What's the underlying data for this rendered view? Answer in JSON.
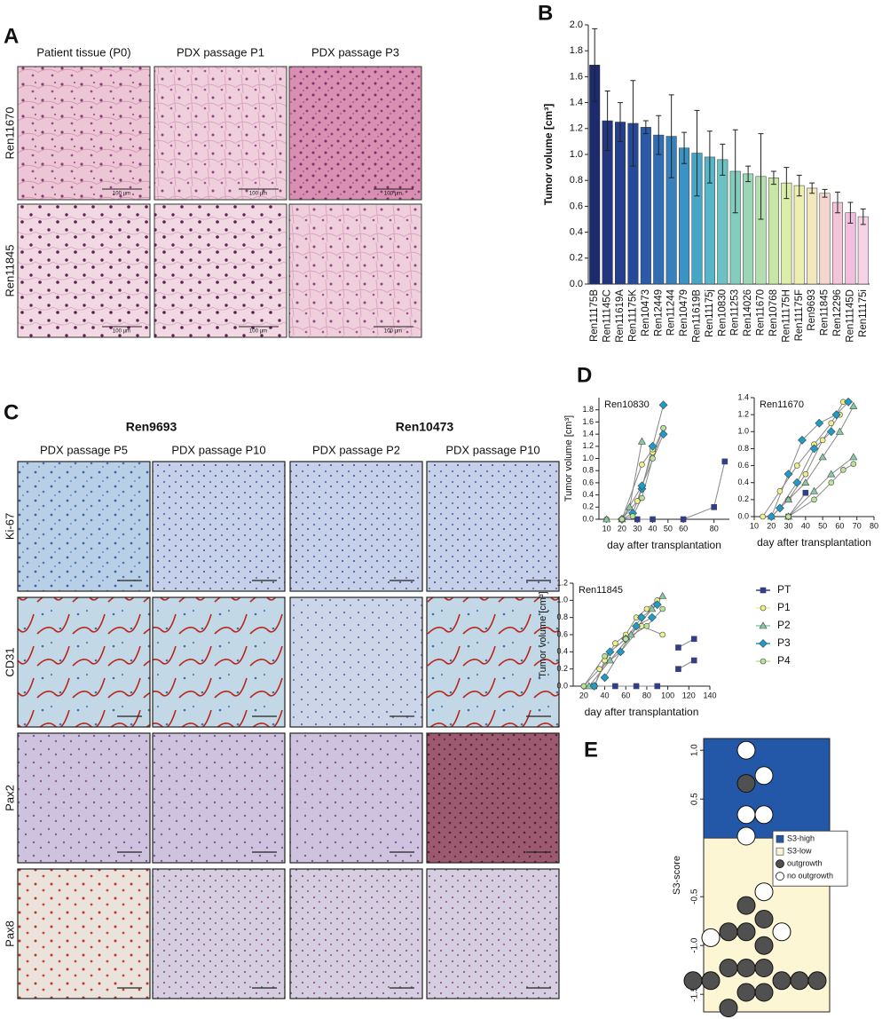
{
  "panel_letters": [
    "A",
    "B",
    "C",
    "D",
    "E"
  ],
  "panels": {
    "a": {
      "columns": [
        "Patient tissue (P0)",
        "PDX passage P1",
        "PDX passage P3"
      ],
      "rows": [
        "Ren11670",
        "Ren11845"
      ],
      "scale_bar": "100 µm"
    },
    "c": {
      "groups": [
        {
          "name": "Ren9693",
          "columns": [
            "PDX passage P5",
            "PDX passage P10"
          ]
        },
        {
          "name": "Ren10473",
          "columns": [
            "PDX passage P2",
            "PDX passage P10"
          ]
        }
      ],
      "rows": [
        "Ki-67",
        "CD31",
        "Pax2",
        "Pax8"
      ]
    }
  },
  "chart_data": [
    {
      "type": "bar",
      "ylabel": "Tumor volume [cm³]",
      "categories": [
        "Ren11175B",
        "Ren11145C",
        "Ren11619A",
        "Ren11175K",
        "Ren10473",
        "Ren12449",
        "Ren11244",
        "Ren10479",
        "Ren11619B",
        "Ren11175j",
        "Ren10830",
        "Ren11253",
        "Ren14026",
        "Ren11670",
        "Ren10768",
        "Ren11175H",
        "Ren11175F",
        "Ren9693",
        "Ren11845",
        "Ren12296",
        "Ren11145D",
        "Ren11175i"
      ],
      "values": [
        1.69,
        1.26,
        1.25,
        1.24,
        1.21,
        1.15,
        1.14,
        1.05,
        1.01,
        0.98,
        0.96,
        0.87,
        0.85,
        0.83,
        0.82,
        0.78,
        0.76,
        0.74,
        0.7,
        0.63,
        0.55,
        0.52
      ],
      "errors": [
        0.28,
        0.23,
        0.15,
        0.33,
        0.05,
        0.15,
        0.32,
        0.12,
        0.33,
        0.2,
        0.12,
        0.32,
        0.06,
        0.33,
        0.05,
        0.12,
        0.08,
        0.04,
        0.03,
        0.08,
        0.08,
        0.06
      ],
      "colors": [
        "#1c2a6e",
        "#22357f",
        "#253f8e",
        "#27499c",
        "#2a5aa8",
        "#2f6db5",
        "#3580bd",
        "#3a93c4",
        "#45a6c8",
        "#56b5c7",
        "#6cc2c3",
        "#84cdbd",
        "#9bd6b6",
        "#b3deae",
        "#c8e6a8",
        "#dbeda6",
        "#ecefb0",
        "#f3e7bd",
        "#f4d7cc",
        "#f2c6d8",
        "#f1bfdd",
        "#f6d3e6"
      ],
      "ylim": [
        0,
        2.0
      ],
      "yticks": [
        {
          "value": 0,
          "label": "0.0"
        },
        0.2,
        0.4,
        0.6,
        0.8,
        {
          "value": 1,
          "label": "1.0"
        },
        1.2,
        1.4,
        1.6,
        1.8,
        {
          "value": 2,
          "label": "2.0"
        }
      ]
    },
    {
      "type": "line",
      "title": "Ren10830",
      "xlabel": "day after transplantation",
      "ylabel": "Tumor volume [cm³]",
      "xlim": [
        5,
        90
      ],
      "xticks": [
        10,
        20,
        30,
        40,
        50,
        60,
        80
      ],
      "ylim": [
        0,
        2.0
      ],
      "yticks": [
        {
          "value": 0,
          "label": "0.0"
        },
        0.2,
        0.4,
        0.6,
        0.8,
        {
          "value": 1,
          "label": "1.0"
        },
        1.2,
        1.4,
        1.6,
        1.8
      ],
      "line_color": "#888888",
      "series": [
        {
          "color": "#2f3e94",
          "marker": "square",
          "x": [
            30,
            40,
            null,
            60,
            80,
            87
          ],
          "values": [
            0,
            0,
            null,
            0,
            0.2,
            0.95
          ]
        },
        {
          "color": "#eef08c",
          "marker": "circle",
          "x": [
            10,
            20,
            30,
            40,
            47,
            null,
            20,
            33,
            40
          ],
          "values": [
            0,
            0,
            0.3,
            1.1,
            1.5,
            null,
            0,
            0.9,
            1.15
          ]
        },
        {
          "color": "#86c9a3",
          "marker": "triangle",
          "x": [
            10,
            20,
            25,
            33
          ],
          "values": [
            0,
            0,
            0.2,
            1.28
          ]
        },
        {
          "color": "#1e9cc8",
          "marker": "diamond",
          "x": [
            20,
            27,
            33,
            40,
            47,
            null,
            20,
            33,
            47
          ],
          "values": [
            0,
            0.1,
            0.5,
            1.2,
            1.88,
            null,
            0,
            0.55,
            1.4
          ]
        },
        {
          "color": "#b9e39a",
          "marker": "circle",
          "x": [
            20,
            27,
            33,
            40,
            47
          ],
          "values": [
            0,
            0.05,
            0.35,
            1.0,
            1.5
          ]
        }
      ]
    },
    {
      "type": "line",
      "title": "Ren11670",
      "xlabel": "day after transplantation",
      "ylabel": "",
      "xlim": [
        10,
        80
      ],
      "xticks": [
        10,
        20,
        30,
        40,
        50,
        60,
        70,
        80
      ],
      "ylim": [
        0,
        1.4
      ],
      "yticks": [
        {
          "value": 0,
          "label": "0.0"
        },
        0.2,
        0.4,
        0.6,
        0.8,
        {
          "value": 1,
          "label": "1.0"
        },
        1.2,
        1.4
      ],
      "line_color": "#888888",
      "series": [
        {
          "color": "#2f3e94",
          "marker": "square",
          "x": [
            30,
            40
          ],
          "values": [
            0,
            0.28
          ]
        },
        {
          "color": "#eef08c",
          "marker": "circle",
          "x": [
            15,
            25,
            35,
            45,
            55,
            62,
            null,
            20,
            30,
            40,
            50,
            60
          ],
          "values": [
            0,
            0.3,
            0.6,
            0.85,
            1.1,
            1.35,
            null,
            0,
            0.2,
            0.5,
            0.9,
            1.2
          ]
        },
        {
          "color": "#86c9a3",
          "marker": "triangle",
          "x": [
            20,
            30,
            40,
            50,
            60,
            68,
            null,
            30,
            45,
            55,
            68
          ],
          "values": [
            0,
            0.2,
            0.4,
            0.7,
            1.0,
            1.3,
            null,
            0,
            0.3,
            0.5,
            0.7
          ]
        },
        {
          "color": "#1e9cc8",
          "marker": "diamond",
          "x": [
            20,
            30,
            38,
            48,
            58,
            65,
            null,
            25,
            35,
            45,
            55
          ],
          "values": [
            0,
            0.5,
            0.9,
            1.1,
            1.2,
            1.35,
            null,
            0.1,
            0.4,
            0.8,
            1.0
          ]
        },
        {
          "color": "#b9e39a",
          "marker": "circle",
          "x": [
            30,
            45,
            55,
            62,
            68
          ],
          "values": [
            0,
            0.2,
            0.4,
            0.55,
            0.62
          ]
        }
      ]
    },
    {
      "type": "line",
      "title": "Ren11845",
      "xlabel": "day after transplantation",
      "ylabel": "Tumor volume [cm³]",
      "xlim": [
        10,
        140
      ],
      "xticks": [
        20,
        40,
        60,
        80,
        100,
        120,
        140
      ],
      "ylim": [
        0,
        1.2
      ],
      "yticks": [
        {
          "value": 0,
          "label": "0.0"
        },
        0.2,
        0.4,
        0.6,
        0.8,
        {
          "value": 1,
          "label": "1.0"
        },
        1.2
      ],
      "line_color": "#888888",
      "legend": "right",
      "series": [
        {
          "name": "PT",
          "color": "#2f3e94",
          "marker": "square",
          "x": [
            30,
            50,
            70,
            90,
            null,
            110,
            125,
            null,
            110,
            125
          ],
          "values": [
            0,
            0,
            0,
            0,
            null,
            0.45,
            0.55,
            null,
            0.2,
            0.3
          ]
        },
        {
          "name": "P1",
          "color": "#eef08c",
          "marker": "circle",
          "x": [
            30,
            40,
            50,
            60,
            70,
            80,
            90,
            null,
            20,
            35,
            55,
            75,
            95
          ],
          "values": [
            0,
            0.3,
            0.5,
            0.6,
            0.8,
            0.9,
            1.0,
            null,
            0,
            0.2,
            0.4,
            0.7,
            0.6
          ]
        },
        {
          "name": "P2",
          "color": "#86c9a3",
          "marker": "triangle",
          "x": [
            25,
            45,
            65,
            85,
            95
          ],
          "values": [
            0,
            0.3,
            0.6,
            0.9,
            1.05
          ]
        },
        {
          "name": "P3",
          "color": "#1e9cc8",
          "marker": "diamond",
          "x": [
            30,
            45,
            60,
            75,
            90,
            null,
            40,
            55,
            70,
            85
          ],
          "values": [
            0,
            0.4,
            0.55,
            0.8,
            0.95,
            null,
            0.1,
            0.4,
            0.7,
            0.8
          ]
        },
        {
          "name": "P4",
          "color": "#b9e39a",
          "marker": "circle",
          "x": [
            20,
            40,
            60,
            80,
            95
          ],
          "values": [
            0,
            0.35,
            0.55,
            0.7,
            0.9
          ]
        }
      ]
    },
    {
      "type": "swarm",
      "ylabel": "S3-score",
      "ylim": [
        -1.68,
        1.12
      ],
      "yticks": [
        {
          "value": 1,
          "label": "1.0"
        },
        0.5,
        -0.5,
        {
          "value": -1,
          "label": "-1.0"
        },
        -1.5
      ],
      "threshold": 0.1,
      "regions": [
        {
          "name": "S3-high",
          "color": "#2358a8"
        },
        {
          "name": "S3-low",
          "color": "#fcf6d4"
        }
      ],
      "legend": "right",
      "series": [
        {
          "name": "outgrowth",
          "color": "#505050",
          "values": [
            0.66,
            -0.59,
            -0.73,
            -0.86,
            -0.86,
            -1.0,
            -1.23,
            -1.23,
            -1.23,
            -1.36,
            -1.36,
            -1.36,
            -1.36,
            -1.36,
            -1.48,
            -1.48,
            -1.64
          ]
        },
        {
          "name": "no outgrowth",
          "color": "#ffffff",
          "values": [
            1.0,
            0.74,
            0.34,
            0.34,
            0.12,
            -0.45,
            -0.86,
            -0.92
          ]
        }
      ]
    }
  ]
}
